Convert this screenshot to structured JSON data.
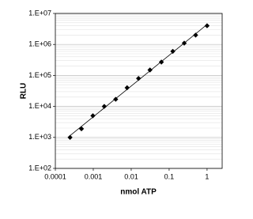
{
  "chart_data": {
    "type": "scatter",
    "x_label": "nmol ATP",
    "y_label": "RLU",
    "x": [
      0.000244,
      0.000488,
      0.000977,
      0.00195,
      0.0039,
      0.0078,
      0.0156,
      0.03125,
      0.0625,
      0.125,
      0.25,
      0.5,
      1
    ],
    "values": [
      1000,
      1900,
      5000,
      10000,
      17000,
      40000,
      80000,
      150000,
      270000,
      600000,
      1100000,
      2000000,
      4000000
    ],
    "color": "#000000",
    "x_log": true,
    "y_log": true,
    "xlim": [
      0.0001,
      2.5
    ],
    "ylim": [
      100,
      10000000
    ],
    "xticks": [
      0.0001,
      0.001,
      0.01,
      0.1,
      1
    ],
    "yticks": [
      {
        "value": 100,
        "label": "1.E+02"
      },
      {
        "value": 1000,
        "label": "1.E+03"
      },
      {
        "value": 10000,
        "label": "1.E+04"
      },
      {
        "value": 100000,
        "label": "1.E+05"
      },
      {
        "value": 1000000,
        "label": "1.E+06"
      },
      {
        "value": 10000000,
        "label": "1.E+07"
      }
    ],
    "grid": true,
    "minor_grid": true,
    "trendline": true
  }
}
